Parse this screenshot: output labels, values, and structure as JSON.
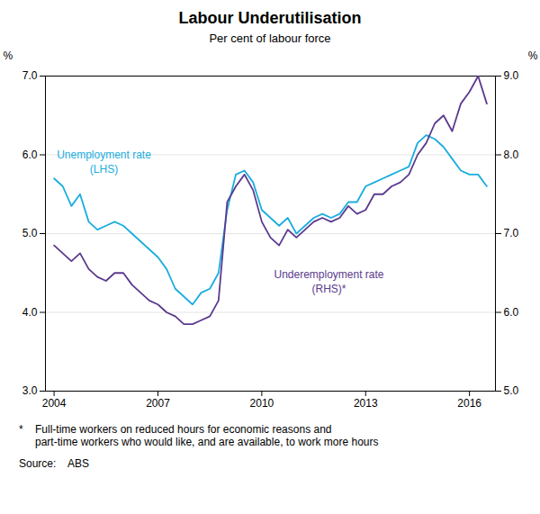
{
  "chart_data": {
    "type": "line",
    "title": "Labour Underutilisation",
    "subtitle": "Per cent of labour force",
    "ylabel": "%",
    "y2label": "%",
    "x": [
      2004.0,
      2004.25,
      2004.5,
      2004.75,
      2005.0,
      2005.25,
      2005.5,
      2005.75,
      2006.0,
      2006.25,
      2006.5,
      2006.75,
      2007.0,
      2007.25,
      2007.5,
      2007.75,
      2008.0,
      2008.25,
      2008.5,
      2008.75,
      2009.0,
      2009.25,
      2009.5,
      2009.75,
      2010.0,
      2010.25,
      2010.5,
      2010.75,
      2011.0,
      2011.25,
      2011.5,
      2011.75,
      2012.0,
      2012.25,
      2012.5,
      2012.75,
      2013.0,
      2013.25,
      2013.5,
      2013.75,
      2014.0,
      2014.25,
      2014.5,
      2014.75,
      2015.0,
      2015.25,
      2015.5,
      2015.75,
      2016.0,
      2016.25,
      2016.5
    ],
    "series": [
      {
        "name": "Unemployment rate\n(LHS)",
        "color": "#1AADDE",
        "axis": "y",
        "values": [
          5.7,
          5.6,
          5.35,
          5.5,
          5.15,
          5.05,
          5.1,
          5.15,
          5.1,
          5.0,
          4.9,
          4.8,
          4.7,
          4.55,
          4.3,
          4.2,
          4.1,
          4.25,
          4.3,
          4.5,
          5.3,
          5.75,
          5.8,
          5.65,
          5.3,
          5.2,
          5.1,
          5.2,
          5.0,
          5.1,
          5.2,
          5.25,
          5.2,
          5.25,
          5.4,
          5.4,
          5.6,
          5.65,
          5.7,
          5.75,
          5.8,
          5.85,
          6.15,
          6.25,
          6.2,
          6.1,
          5.95,
          5.8,
          5.75,
          5.75,
          5.6
        ]
      },
      {
        "name": "Underemployment rate\n(RHS)*",
        "color": "#5B3A8E",
        "axis": "y2",
        "values": [
          6.85,
          6.75,
          6.65,
          6.75,
          6.55,
          6.45,
          6.4,
          6.5,
          6.5,
          6.35,
          6.25,
          6.15,
          6.1,
          6.0,
          5.95,
          5.85,
          5.85,
          5.9,
          5.95,
          6.15,
          7.4,
          7.6,
          7.75,
          7.55,
          7.15,
          6.95,
          6.85,
          7.05,
          6.95,
          7.05,
          7.15,
          7.2,
          7.15,
          7.2,
          7.35,
          7.25,
          7.3,
          7.5,
          7.5,
          7.6,
          7.65,
          7.75,
          8.0,
          8.15,
          8.4,
          8.5,
          8.3,
          8.65,
          8.8,
          9.0,
          8.65
        ]
      }
    ],
    "xlim": [
      2003.75,
      2016.75
    ],
    "xticks": [
      2004,
      2007,
      2010,
      2013,
      2016
    ],
    "ylim": [
      3,
      7
    ],
    "yticks": [
      3,
      4,
      5,
      6,
      7
    ],
    "y2lim": [
      5,
      9
    ],
    "y2ticks": [
      5,
      6,
      7,
      8,
      9
    ],
    "grid": true,
    "footnote_marker": "*",
    "footnote": "Full-time workers on reduced hours for economic reasons and\npart-time workers who would like, and are available, to work more hours",
    "source": "Source:    ABS"
  }
}
